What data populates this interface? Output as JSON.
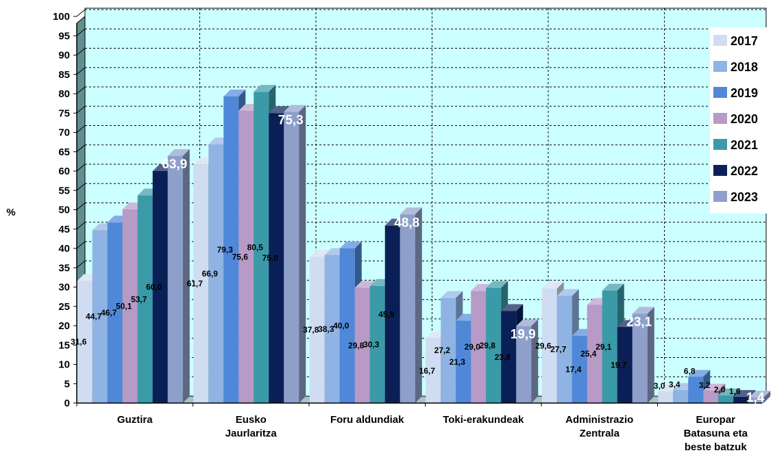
{
  "chart_data": {
    "type": "bar",
    "ylabel": "%",
    "ylim": [
      0,
      100
    ],
    "ytick_step": 5,
    "grid": true,
    "legend_position": "top-right",
    "categories": [
      [
        "Guztira"
      ],
      [
        "Eusko",
        "Jaurlaritza"
      ],
      [
        "Foru aldundiak"
      ],
      [
        "Toki-erakundeak"
      ],
      [
        "Administrazio",
        "Zentrala"
      ],
      [
        "Europar",
        "Batasuna eta",
        "beste batzuk"
      ]
    ],
    "series": [
      {
        "name": "2017",
        "color": "#cfdcf1",
        "values": [
          31.6,
          61.7,
          37.8,
          16.7,
          29.6,
          3.0
        ],
        "labels": [
          "31,6",
          "61,7",
          "37,8",
          "16,7",
          "29,6",
          "3,0"
        ]
      },
      {
        "name": "2018",
        "color": "#8fb3e3",
        "values": [
          44.7,
          66.9,
          38.3,
          27.2,
          27.7,
          3.4
        ],
        "labels": [
          "44,7",
          "66,9",
          "38,3",
          "27,2",
          "27,7",
          "3,4"
        ]
      },
      {
        "name": "2019",
        "color": "#4f88d8",
        "values": [
          46.7,
          79.3,
          40.0,
          21.3,
          17.4,
          6.8
        ],
        "labels": [
          "46,7",
          "79,3",
          "40,0",
          "21,3",
          "17,4",
          "6,8"
        ]
      },
      {
        "name": "2020",
        "color": "#b79ac6",
        "values": [
          50.1,
          75.6,
          29.8,
          29.0,
          25.4,
          3.2
        ],
        "labels": [
          "50,1",
          "75,6",
          "29,8",
          "29,0",
          "25,4",
          "3,2"
        ]
      },
      {
        "name": "2021",
        "color": "#3b9aa8",
        "values": [
          53.7,
          80.5,
          30.3,
          29.8,
          29.1,
          2.0
        ],
        "labels": [
          "53,7",
          "80,5",
          "30,3",
          "29,8",
          "29,1",
          "2,0"
        ]
      },
      {
        "name": "2022",
        "color": "#0b1f57",
        "values": [
          60.0,
          75.0,
          45.9,
          23.8,
          19.7,
          1.6
        ],
        "labels": [
          "60,0",
          "75,0",
          "45,9",
          "23,8",
          "19,7",
          "1,6"
        ]
      },
      {
        "name": "2023",
        "color": "#8e9fca",
        "values": [
          63.9,
          75.3,
          48.8,
          19.9,
          23.1,
          1.4
        ],
        "labels": [
          "63,9",
          "75,3",
          "48,8",
          "19,9",
          "23,1",
          "1,4"
        ]
      }
    ]
  }
}
